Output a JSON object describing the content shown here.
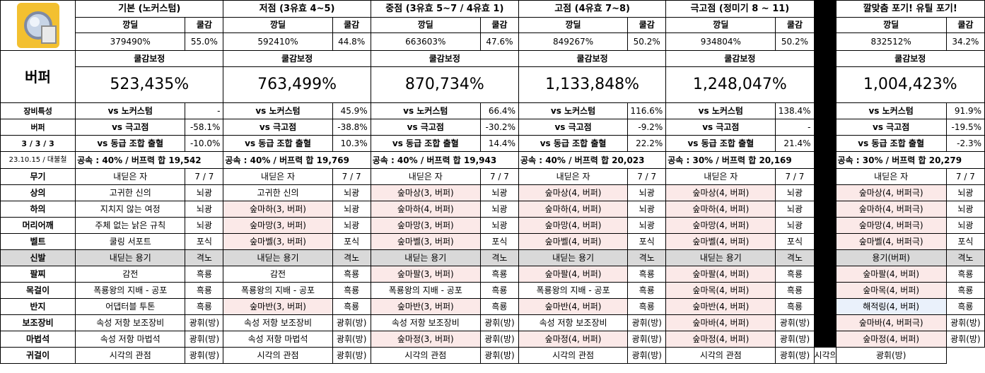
{
  "columns": [
    {
      "title": "기본 (노커스텀)",
      "deal": "379490%",
      "cool": "55.0%",
      "corr_label": "쿨감보정",
      "corr": "523,435%",
      "vs_nocustom": "-",
      "vs_geukgo": "-58.1%",
      "vs_same": "-10.0%",
      "speed": "공속 : 40% / 버프력 합 19,542",
      "items": [
        {
          "name": "내딛은 자",
          "opt": "7 / 7",
          "hl": ""
        },
        {
          "name": "고귀한 신의",
          "opt": "뇌광",
          "hl": ""
        },
        {
          "name": "지치지 않는 여정",
          "opt": "뇌광",
          "hl": ""
        },
        {
          "name": "주체 없는 낡은 규칙",
          "opt": "뇌광",
          "hl": ""
        },
        {
          "name": "쿨링 서포트",
          "opt": "포식",
          "hl": ""
        },
        {
          "name": "내딛는 용기",
          "opt": "격노",
          "hl": "grey"
        },
        {
          "name": "감전",
          "opt": "흑룡",
          "hl": ""
        },
        {
          "name": "폭룡왕의 지배 - 공포",
          "opt": "흑룡",
          "hl": ""
        },
        {
          "name": "어댑터블 투톤",
          "opt": "흑룡",
          "hl": ""
        },
        {
          "name": "속성 저항 보조장비",
          "opt": "광휘(방)",
          "hl": ""
        },
        {
          "name": "속성 저항 마법석",
          "opt": "광휘(방)",
          "hl": ""
        },
        {
          "name": "시각의 관점",
          "opt": "광휘(방)",
          "hl": ""
        }
      ]
    },
    {
      "title": "저점 (3유효 4~5)",
      "deal": "592410%",
      "cool": "44.8%",
      "corr_label": "쿨감보정",
      "corr": "763,499%",
      "vs_nocustom": "45.9%",
      "vs_geukgo": "-38.8%",
      "vs_same": "10.3%",
      "speed": "공속 : 40% / 버프력 합 19,769",
      "items": [
        {
          "name": "내딛은 자",
          "opt": "7 / 7",
          "hl": ""
        },
        {
          "name": "고귀한 신의",
          "opt": "뇌광",
          "hl": ""
        },
        {
          "name": "숲마하(3, 버퍼)",
          "opt": "뇌광",
          "hl": "pink"
        },
        {
          "name": "숲마망(3, 버퍼)",
          "opt": "뇌광",
          "hl": "pink"
        },
        {
          "name": "숲마벨(3, 버퍼)",
          "opt": "포식",
          "hl": "pink"
        },
        {
          "name": "내딛는 용기",
          "opt": "격노",
          "hl": "grey"
        },
        {
          "name": "감전",
          "opt": "흑룡",
          "hl": ""
        },
        {
          "name": "폭룡왕의 지배 - 공포",
          "opt": "흑룡",
          "hl": ""
        },
        {
          "name": "숲마반(3, 버퍼)",
          "opt": "흑룡",
          "hl": "pink"
        },
        {
          "name": "속성 저항 보조장비",
          "opt": "광휘(방)",
          "hl": ""
        },
        {
          "name": "속성 저항 마법석",
          "opt": "광휘(방)",
          "hl": ""
        },
        {
          "name": "시각의 관점",
          "opt": "광휘(방)",
          "hl": ""
        }
      ]
    },
    {
      "title": "중점 (3유효 5~7 / 4유효 1)",
      "deal": "663603%",
      "cool": "47.6%",
      "corr_label": "쿨감보정",
      "corr": "870,734%",
      "vs_nocustom": "66.4%",
      "vs_geukgo": "-30.2%",
      "vs_same": "14.4%",
      "speed": "공속 : 40% / 버프력 합 19,943",
      "items": [
        {
          "name": "내딛은 자",
          "opt": "7 / 7",
          "hl": ""
        },
        {
          "name": "숲마상(3, 버퍼)",
          "opt": "뇌광",
          "hl": "pink"
        },
        {
          "name": "숲마하(4, 버퍼)",
          "opt": "뇌광",
          "hl": "pink"
        },
        {
          "name": "숲마망(3, 버퍼)",
          "opt": "뇌광",
          "hl": "pink"
        },
        {
          "name": "숲마벨(3, 버퍼)",
          "opt": "포식",
          "hl": "pink"
        },
        {
          "name": "내딛는 용기",
          "opt": "격노",
          "hl": "grey"
        },
        {
          "name": "숲마팔(3, 버퍼)",
          "opt": "흑룡",
          "hl": "pink"
        },
        {
          "name": "폭룡왕의 지배 - 공포",
          "opt": "흑룡",
          "hl": ""
        },
        {
          "name": "숲마반(3, 버퍼)",
          "opt": "흑룡",
          "hl": "pink"
        },
        {
          "name": "속성 저항 보조장비",
          "opt": "광휘(방)",
          "hl": ""
        },
        {
          "name": "숲마정(3, 버퍼)",
          "opt": "광휘(방)",
          "hl": "pink"
        },
        {
          "name": "시각의 관점",
          "opt": "광휘(방)",
          "hl": ""
        }
      ]
    },
    {
      "title": "고점 (4유효 7~8)",
      "deal": "849267%",
      "cool": "50.2%",
      "corr_label": "쿨감보정",
      "corr": "1,133,848%",
      "vs_nocustom": "116.6%",
      "vs_geukgo": "-9.2%",
      "vs_same": "22.2%",
      "speed": "공속 : 40% / 버프력 합 20,023",
      "items": [
        {
          "name": "내딛은 자",
          "opt": "7 / 7",
          "hl": ""
        },
        {
          "name": "숲마상(4, 버퍼)",
          "opt": "뇌광",
          "hl": "pink"
        },
        {
          "name": "숲마하(4, 버퍼)",
          "opt": "뇌광",
          "hl": "pink"
        },
        {
          "name": "숲마망(4, 버퍼)",
          "opt": "뇌광",
          "hl": "pink"
        },
        {
          "name": "숲마벨(4, 버퍼)",
          "opt": "포식",
          "hl": "pink"
        },
        {
          "name": "내딛는 용기",
          "opt": "격노",
          "hl": "grey"
        },
        {
          "name": "숲마팔(4, 버퍼)",
          "opt": "흑룡",
          "hl": "pink"
        },
        {
          "name": "폭룡왕의 지배 - 공포",
          "opt": "흑룡",
          "hl": ""
        },
        {
          "name": "숲마반(4, 버퍼)",
          "opt": "흑룡",
          "hl": "pink"
        },
        {
          "name": "속성 저항 보조장비",
          "opt": "광휘(방)",
          "hl": ""
        },
        {
          "name": "숲마정(4, 버퍼)",
          "opt": "광휘(방)",
          "hl": "pink"
        },
        {
          "name": "시각의 관점",
          "opt": "광휘(방)",
          "hl": ""
        }
      ]
    },
    {
      "title": "극고점 (정미기 8 ~ 11)",
      "deal": "934804%",
      "cool": "50.2%",
      "corr_label": "쿨감보정",
      "corr": "1,248,047%",
      "vs_nocustom": "138.4%",
      "vs_geukgo": "-",
      "vs_same": "21.4%",
      "speed": "공속 : 30% / 버프력 합 20,169",
      "items": [
        {
          "name": "내딛은 자",
          "opt": "7 / 7",
          "hl": ""
        },
        {
          "name": "숲마상(4, 버퍼)",
          "opt": "뇌광",
          "hl": "pink"
        },
        {
          "name": "숲마하(4, 버퍼)",
          "opt": "뇌광",
          "hl": "pink"
        },
        {
          "name": "숲마망(4, 버퍼)",
          "opt": "뇌광",
          "hl": "pink"
        },
        {
          "name": "숲마벨(4, 버퍼)",
          "opt": "포식",
          "hl": "pink"
        },
        {
          "name": "내딛는 용기",
          "opt": "격노",
          "hl": "grey"
        },
        {
          "name": "숲마팔(4, 버퍼)",
          "opt": "흑룡",
          "hl": "pink"
        },
        {
          "name": "숲마목(4, 버퍼)",
          "opt": "흑룡",
          "hl": "pink"
        },
        {
          "name": "숲마반(4, 버퍼)",
          "opt": "흑룡",
          "hl": "pink"
        },
        {
          "name": "숲마바(4, 버퍼)",
          "opt": "광휘(방)",
          "hl": "pink"
        },
        {
          "name": "숲마정(4, 버퍼)",
          "opt": "광휘(방)",
          "hl": "pink"
        },
        {
          "name": "시각의 관점",
          "opt": "광휘(방)",
          "hl": ""
        }
      ]
    },
    {
      "title": "깔맞춤 포기! 유틸 포기!",
      "deal": "832512%",
      "cool": "34.2%",
      "corr_label": "쿨감보정",
      "corr": "1,004,423%",
      "vs_nocustom": "91.9%",
      "vs_geukgo": "-19.5%",
      "vs_same": "-2.3%",
      "speed": "공속 : 30% / 버프력 합 20,279",
      "items": [
        {
          "name": "내딛은 자",
          "opt": "7 / 7",
          "hl": ""
        },
        {
          "name": "숲마상(4, 버퍼극)",
          "opt": "뇌광",
          "hl": "pink"
        },
        {
          "name": "숲마하(4, 버퍼극)",
          "opt": "뇌광",
          "hl": "pink"
        },
        {
          "name": "숲마망(4, 버퍼극)",
          "opt": "뇌광",
          "hl": "pink"
        },
        {
          "name": "숲마벨(4, 버퍼극)",
          "opt": "포식",
          "hl": "pink"
        },
        {
          "name": "용기(버퍼)",
          "opt": "격노",
          "hl": "grey"
        },
        {
          "name": "숲마팔(4, 버퍼)",
          "opt": "흑룡",
          "hl": "pink"
        },
        {
          "name": "숲마목(4, 버퍼)",
          "opt": "흑룡",
          "hl": "pink"
        },
        {
          "name": "해적링(4, 버퍼)",
          "opt": "흑룡",
          "hl": "blue"
        },
        {
          "name": "숲마바(4, 버퍼극)",
          "opt": "광휘(방)",
          "hl": "pink"
        },
        {
          "name": "숲마정(4, 버퍼)",
          "opt": "광휘(방)",
          "hl": "pink"
        },
        {
          "name": "시각의 관점",
          "opt": "광휘(방)",
          "hl": ""
        }
      ]
    }
  ],
  "header": {
    "deal_label": "깡딜",
    "cool_label": "쿨감"
  },
  "left": {
    "buffer": "버퍼",
    "trait": "장비특성",
    "buffer_small": "버퍼",
    "ratio": "3 / 3 / 3",
    "date": "23.10.15 / 대불철",
    "vs_nocustom": "vs 노커스텀",
    "vs_geukgo": "vs 극고점",
    "vs_same": "vs 동급 조합 출혈",
    "slots": [
      "무기",
      "상의",
      "하의",
      "머리어깨",
      "벨트",
      "신발",
      "팔찌",
      "목걸이",
      "반지",
      "보조장비",
      "마법석",
      "귀걸이"
    ]
  },
  "colors": {
    "pink": "#fbe9e8",
    "grey": "#d9d9d9",
    "blue": "#eaf1fb",
    "gap": "#000000"
  },
  "icon": "magnifier-badge-icon"
}
